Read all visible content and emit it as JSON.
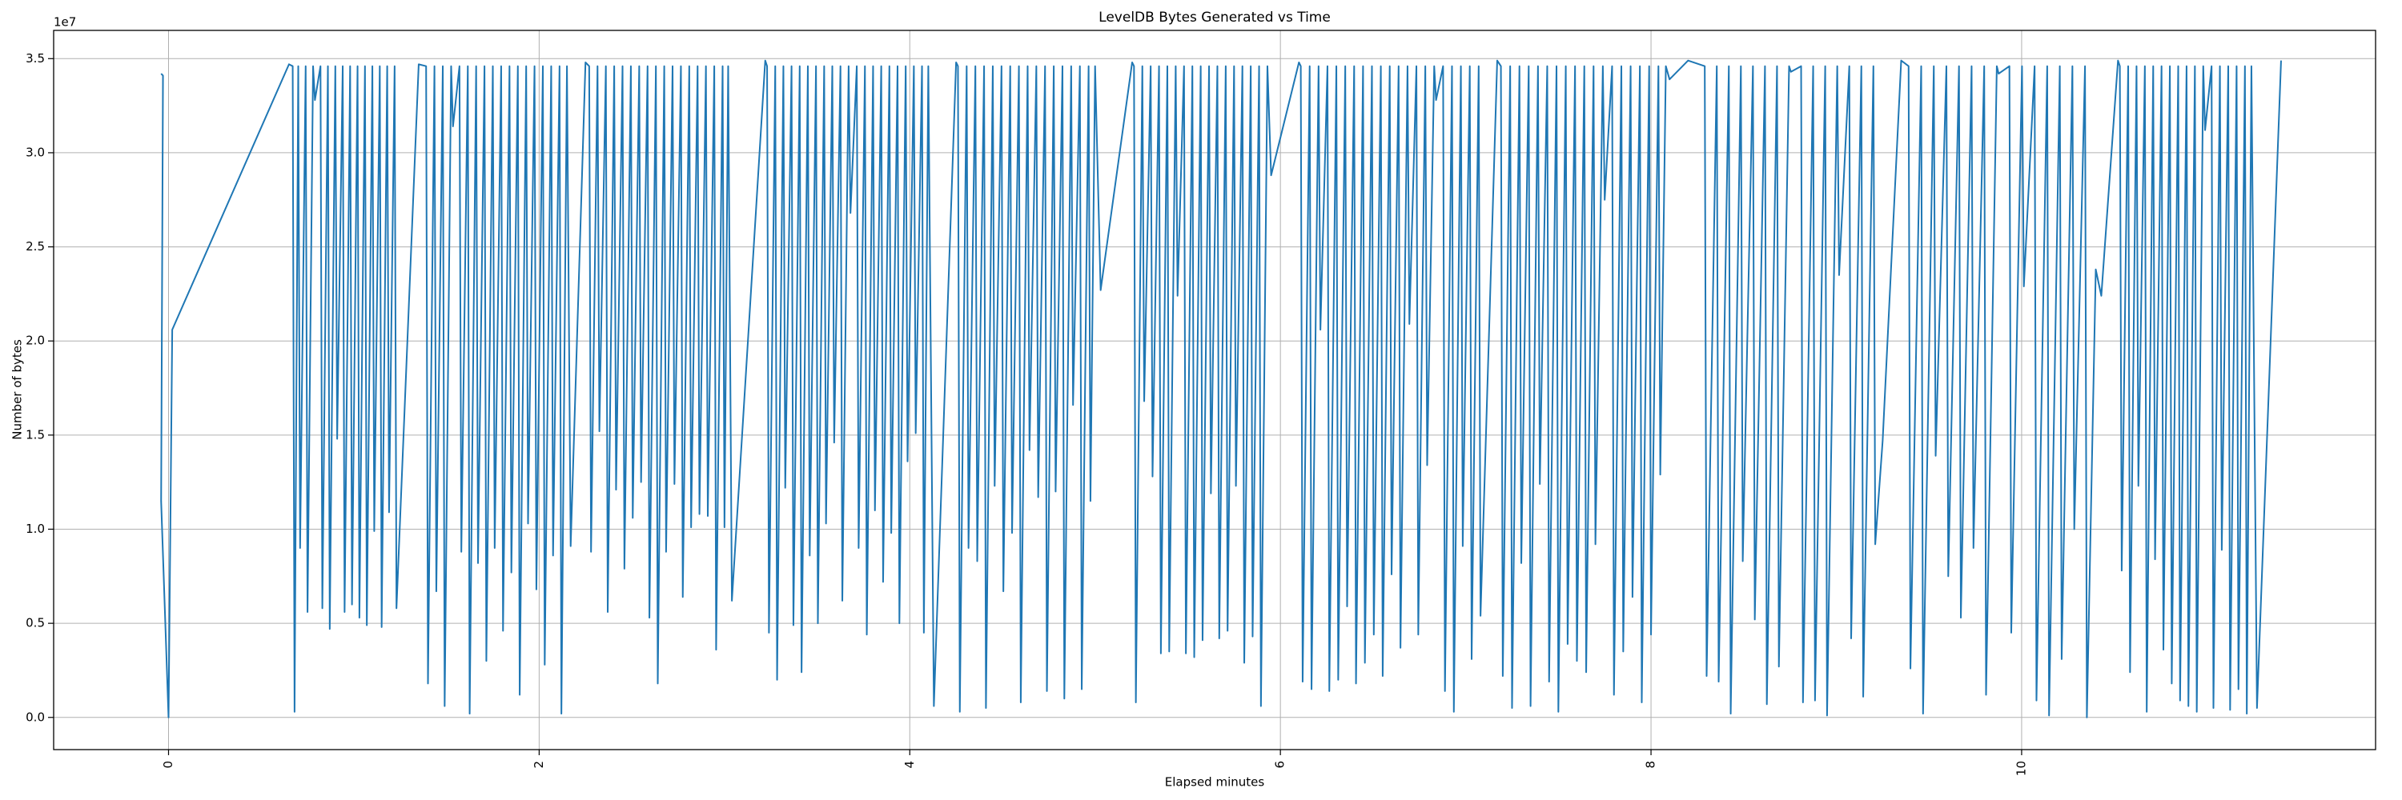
{
  "chart_data": {
    "type": "line",
    "title": "LevelDB Bytes Generated vs Time",
    "xlabel": "Elapsed minutes",
    "ylabel": "Number of bytes",
    "y_offset_label": "1e7",
    "grid": true,
    "xlim": [
      -0.62,
      11.91
    ],
    "ylim": [
      -1710000,
      36500000
    ],
    "xticks": [
      0,
      2,
      4,
      6,
      8,
      10
    ],
    "yticks": [
      {
        "value": 0,
        "label": "0.0"
      },
      {
        "value": 5000000,
        "label": "0.5"
      },
      {
        "value": 10000000,
        "label": "1.0"
      },
      {
        "value": 15000000,
        "label": "1.5"
      },
      {
        "value": 20000000,
        "label": "2.0"
      },
      {
        "value": 25000000,
        "label": "2.5"
      },
      {
        "value": 30000000,
        "label": "3.0"
      },
      {
        "value": 35000000,
        "label": "3.5"
      }
    ],
    "series": [
      {
        "color": "#1f77b4",
        "x": [
          -0.04,
          -0.03,
          -0.04,
          0,
          0.02,
          0.65,
          0.67,
          0.68,
          0.7,
          0.71,
          0.74,
          0.75,
          0.78,
          0.79,
          0.82,
          0.83,
          0.86,
          0.87,
          0.9,
          0.91,
          0.94,
          0.95,
          0.98,
          0.99,
          1.02,
          1.03,
          1.06,
          1.07,
          1.1,
          1.11,
          1.14,
          1.15,
          1.18,
          1.19,
          1.22,
          1.23,
          1.35,
          1.39,
          1.4,
          1.435,
          1.445,
          1.48,
          1.49,
          1.525,
          1.535,
          1.57,
          1.58,
          1.615,
          1.625,
          1.66,
          1.67,
          1.705,
          1.715,
          1.75,
          1.76,
          1.795,
          1.805,
          1.84,
          1.85,
          1.885,
          1.895,
          1.93,
          1.94,
          1.975,
          1.985,
          2.02,
          2.03,
          2.065,
          2.075,
          2.11,
          2.12,
          2.15,
          2.17,
          2.25,
          2.27,
          2.28,
          2.315,
          2.325,
          2.36,
          2.37,
          2.405,
          2.415,
          2.45,
          2.46,
          2.495,
          2.505,
          2.54,
          2.55,
          2.585,
          2.595,
          2.63,
          2.64,
          2.675,
          2.685,
          2.72,
          2.73,
          2.765,
          2.775,
          2.81,
          2.82,
          2.855,
          2.865,
          2.9,
          2.91,
          2.945,
          2.955,
          2.99,
          3.0,
          3.02,
          3.04,
          3.22,
          3.23,
          3.24,
          3.274,
          3.284,
          3.318,
          3.328,
          3.362,
          3.372,
          3.406,
          3.416,
          3.45,
          3.46,
          3.494,
          3.504,
          3.538,
          3.548,
          3.582,
          3.592,
          3.626,
          3.636,
          3.67,
          3.68,
          3.714,
          3.724,
          3.758,
          3.768,
          3.802,
          3.812,
          3.846,
          3.856,
          3.89,
          3.9,
          3.934,
          3.944,
          3.978,
          3.988,
          4.022,
          4.032,
          4.066,
          4.076,
          4.1,
          4.13,
          4.25,
          4.26,
          4.27,
          4.307,
          4.317,
          4.354,
          4.364,
          4.401,
          4.411,
          4.448,
          4.458,
          4.495,
          4.505,
          4.542,
          4.552,
          4.589,
          4.599,
          4.636,
          4.646,
          4.683,
          4.693,
          4.73,
          4.74,
          4.777,
          4.787,
          4.824,
          4.834,
          4.871,
          4.881,
          4.918,
          4.928,
          4.965,
          4.975,
          5.0,
          5.03,
          5.2,
          5.21,
          5.22,
          5.255,
          5.265,
          5.3,
          5.31,
          5.345,
          5.355,
          5.39,
          5.4,
          5.435,
          5.445,
          5.48,
          5.49,
          5.525,
          5.535,
          5.57,
          5.58,
          5.615,
          5.625,
          5.66,
          5.67,
          5.705,
          5.715,
          5.75,
          5.76,
          5.795,
          5.805,
          5.84,
          5.85,
          5.885,
          5.895,
          5.93,
          5.95,
          6.1,
          6.11,
          6.12,
          6.158,
          6.168,
          6.206,
          6.216,
          6.254,
          6.264,
          6.302,
          6.312,
          6.35,
          6.36,
          6.398,
          6.408,
          6.446,
          6.456,
          6.494,
          6.504,
          6.542,
          6.552,
          6.59,
          6.6,
          6.638,
          6.648,
          6.686,
          6.696,
          6.734,
          6.744,
          6.782,
          6.792,
          6.83,
          6.84,
          6.878,
          6.888,
          6.926,
          6.936,
          6.974,
          6.984,
          7.022,
          7.032,
          7.07,
          7.08,
          7.17,
          7.19,
          7.2,
          7.24,
          7.25,
          7.29,
          7.3,
          7.34,
          7.35,
          7.39,
          7.4,
          7.44,
          7.45,
          7.49,
          7.5,
          7.54,
          7.55,
          7.59,
          7.6,
          7.64,
          7.65,
          7.69,
          7.7,
          7.74,
          7.75,
          7.79,
          7.8,
          7.84,
          7.85,
          7.89,
          7.9,
          7.94,
          7.95,
          7.99,
          8.0,
          8.04,
          8.05,
          8.08,
          8.1,
          8.2,
          8.29,
          8.3,
          8.355,
          8.365,
          8.42,
          8.43,
          8.485,
          8.495,
          8.55,
          8.56,
          8.615,
          8.625,
          8.68,
          8.69,
          8.745,
          8.755,
          8.81,
          8.82,
          8.875,
          8.885,
          8.94,
          8.95,
          9.005,
          9.015,
          9.07,
          9.08,
          9.135,
          9.145,
          9.2,
          9.21,
          9.25,
          9.35,
          9.39,
          9.4,
          9.458,
          9.468,
          9.526,
          9.536,
          9.594,
          9.604,
          9.662,
          9.672,
          9.73,
          9.74,
          9.798,
          9.808,
          9.866,
          9.876,
          9.934,
          9.944,
          10.002,
          10.012,
          10.07,
          10.08,
          10.138,
          10.148,
          10.206,
          10.216,
          10.274,
          10.284,
          10.342,
          10.352,
          10.4,
          10.43,
          10.52,
          10.53,
          10.54,
          10.575,
          10.585,
          10.62,
          10.63,
          10.665,
          10.675,
          10.71,
          10.72,
          10.755,
          10.765,
          10.8,
          10.81,
          10.845,
          10.855,
          10.89,
          10.9,
          10.935,
          10.945,
          10.98,
          10.99,
          11.025,
          11.035,
          11.07,
          11.08,
          11.115,
          11.125,
          11.16,
          11.17,
          11.205,
          11.215,
          11.24,
          11.27,
          11.4
        ],
        "values": [
          34200000,
          34100000,
          11500000,
          0,
          20600000,
          34700000,
          34600000,
          300000,
          34600000,
          9000000,
          34600000,
          5600000,
          34600000,
          32800000,
          34600000,
          5800000,
          34600000,
          4700000,
          34600000,
          14800000,
          34600000,
          5600000,
          34600000,
          6000000,
          34600000,
          5300000,
          34600000,
          4900000,
          34600000,
          9900000,
          34600000,
          4800000,
          34600000,
          10900000,
          34600000,
          5800000,
          34700000,
          34600000,
          1800000,
          34600000,
          6700000,
          34600000,
          600000,
          34600000,
          31400000,
          34600000,
          8800000,
          34600000,
          200000,
          34600000,
          8200000,
          34600000,
          3000000,
          34600000,
          9000000,
          34600000,
          4600000,
          34600000,
          7700000,
          34600000,
          1200000,
          34600000,
          10300000,
          34600000,
          6800000,
          34600000,
          2800000,
          34600000,
          8600000,
          34600000,
          200000,
          34600000,
          9100000,
          34800000,
          34600000,
          8800000,
          34600000,
          15200000,
          34600000,
          5600000,
          34600000,
          12100000,
          34600000,
          7900000,
          34600000,
          10600000,
          34600000,
          12500000,
          34600000,
          5300000,
          34600000,
          1800000,
          34600000,
          8800000,
          34600000,
          12400000,
          34600000,
          6400000,
          34600000,
          10100000,
          34600000,
          10800000,
          34600000,
          10700000,
          34600000,
          3600000,
          34600000,
          10100000,
          34600000,
          6200000,
          34900000,
          34600000,
          4500000,
          34600000,
          2000000,
          34600000,
          12200000,
          34600000,
          4900000,
          34600000,
          2400000,
          34600000,
          8600000,
          34600000,
          5000000,
          34600000,
          10300000,
          34600000,
          14600000,
          34600000,
          6200000,
          34600000,
          26800000,
          34600000,
          9000000,
          34600000,
          4400000,
          34600000,
          11000000,
          34600000,
          7200000,
          34600000,
          9800000,
          34600000,
          5000000,
          34600000,
          13600000,
          34600000,
          15100000,
          34600000,
          4500000,
          34600000,
          600000,
          34800000,
          34600000,
          300000,
          34600000,
          9000000,
          34600000,
          8300000,
          34600000,
          500000,
          34600000,
          12300000,
          34600000,
          6700000,
          34600000,
          9800000,
          34600000,
          800000,
          34600000,
          14200000,
          34600000,
          11700000,
          34600000,
          1400000,
          34600000,
          12000000,
          34600000,
          1000000,
          34600000,
          16600000,
          34600000,
          1500000,
          34600000,
          11500000,
          34600000,
          22700000,
          34800000,
          34600000,
          800000,
          34600000,
          16800000,
          34600000,
          12800000,
          34600000,
          3400000,
          34600000,
          3500000,
          34600000,
          22400000,
          34600000,
          3400000,
          34600000,
          3200000,
          34600000,
          4100000,
          34600000,
          11900000,
          34600000,
          4200000,
          34600000,
          4600000,
          34600000,
          12300000,
          34600000,
          2900000,
          34600000,
          4300000,
          34600000,
          600000,
          34600000,
          28800000,
          34800000,
          34600000,
          1900000,
          34600000,
          1500000,
          34600000,
          20600000,
          34600000,
          1400000,
          34600000,
          2000000,
          34600000,
          5900000,
          34600000,
          1800000,
          34600000,
          2900000,
          34600000,
          4400000,
          34600000,
          2200000,
          34600000,
          7600000,
          34600000,
          3700000,
          34600000,
          20900000,
          34600000,
          4400000,
          34600000,
          13400000,
          34600000,
          32800000,
          34600000,
          1400000,
          34600000,
          300000,
          34600000,
          9100000,
          34600000,
          3100000,
          34600000,
          5400000,
          34900000,
          34600000,
          2200000,
          34600000,
          500000,
          34600000,
          8200000,
          34600000,
          600000,
          34600000,
          12400000,
          34600000,
          1900000,
          34600000,
          300000,
          34600000,
          3900000,
          34600000,
          3000000,
          34600000,
          2400000,
          34600000,
          9200000,
          34600000,
          27500000,
          34600000,
          1200000,
          34600000,
          3500000,
          34600000,
          6400000,
          34600000,
          800000,
          34600000,
          4400000,
          34600000,
          12900000,
          34600000,
          33900000,
          34900000,
          34600000,
          2200000,
          34600000,
          1900000,
          34600000,
          200000,
          34600000,
          8300000,
          34600000,
          5200000,
          34600000,
          700000,
          34600000,
          2700000,
          34600000,
          34300000,
          34600000,
          800000,
          34600000,
          900000,
          34600000,
          100000,
          34600000,
          23500000,
          34600000,
          4200000,
          34600000,
          1100000,
          34600000,
          9200000,
          14700000,
          34900000,
          34600000,
          2600000,
          34600000,
          200000,
          34600000,
          13900000,
          34600000,
          7500000,
          34600000,
          5300000,
          34600000,
          9000000,
          34600000,
          1200000,
          34600000,
          34200000,
          34600000,
          4500000,
          34600000,
          22900000,
          34600000,
          900000,
          34600000,
          100000,
          34600000,
          3100000,
          34600000,
          10000000,
          34600000,
          0,
          23800000,
          22400000,
          34900000,
          34600000,
          7800000,
          34600000,
          2400000,
          34600000,
          12300000,
          34600000,
          300000,
          34600000,
          8400000,
          34600000,
          3600000,
          34600000,
          1800000,
          34600000,
          900000,
          34600000,
          600000,
          34600000,
          300000,
          34600000,
          31200000,
          34600000,
          500000,
          34600000,
          8900000,
          34600000,
          400000,
          34600000,
          1500000,
          34600000,
          200000,
          34600000,
          500000,
          34900000
        ]
      }
    ]
  }
}
